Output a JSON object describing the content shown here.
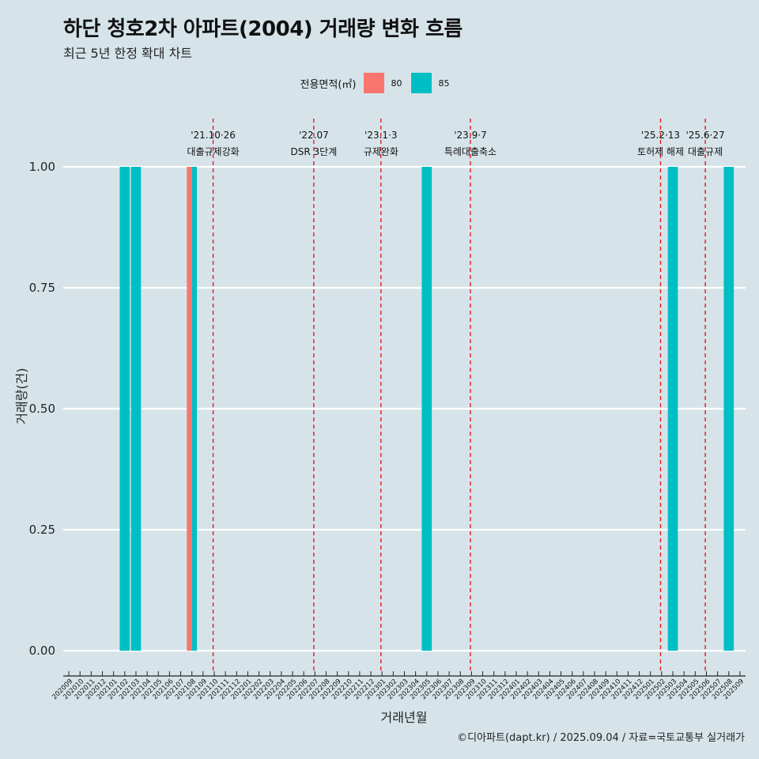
{
  "title": "하단 청호2차 아파트(2004) 거래량 변화 흐름",
  "subtitle": "최근 5년 한정 확대 차트",
  "caption": "©디아파트(dapt.kr) / 2025.09.04 / 자료=국토교통부 실거래가",
  "legend": {
    "title": "전용면적(㎡)",
    "items": [
      {
        "label": "80",
        "color": "#f8766d"
      },
      {
        "label": "85",
        "color": "#00bfc4"
      }
    ]
  },
  "chart_data": {
    "type": "bar",
    "xlabel": "거래년월",
    "ylabel": "거래량(건)",
    "ylim": [
      0,
      1
    ],
    "yticks": [
      "0.00",
      "0.25",
      "0.50",
      "0.75",
      "1.00"
    ],
    "categories": [
      "202009",
      "202010",
      "202011",
      "202012",
      "202101",
      "202102",
      "202103",
      "202104",
      "202105",
      "202106",
      "202107",
      "202108",
      "202109",
      "202110",
      "202111",
      "202112",
      "202201",
      "202202",
      "202203",
      "202204",
      "202205",
      "202206",
      "202207",
      "202208",
      "202209",
      "202210",
      "202211",
      "202212",
      "202301",
      "202302",
      "202303",
      "202304",
      "202305",
      "202306",
      "202307",
      "202308",
      "202309",
      "202310",
      "202311",
      "202312",
      "202401",
      "202402",
      "202403",
      "202404",
      "202405",
      "202406",
      "202407",
      "202408",
      "202409",
      "202410",
      "202411",
      "202412",
      "202501",
      "202502",
      "202503",
      "202504",
      "202505",
      "202506",
      "202507",
      "202508",
      "202509"
    ],
    "bars": [
      {
        "month": "202102",
        "series": "85",
        "value": 1
      },
      {
        "month": "202103",
        "series": "85",
        "value": 1
      },
      {
        "month": "202108",
        "series": "80",
        "value": 1
      },
      {
        "month": "202108",
        "series": "85",
        "value": 1
      },
      {
        "month": "202305",
        "series": "85",
        "value": 1
      },
      {
        "month": "202503",
        "series": "85",
        "value": 1
      },
      {
        "month": "202508",
        "series": "85",
        "value": 1
      }
    ],
    "events": [
      {
        "pos": 13.4,
        "date": "'21.10·26",
        "label": "대출규제강화"
      },
      {
        "pos": 22.4,
        "date": "'22.07",
        "label": "DSR 3단계"
      },
      {
        "pos": 28.4,
        "date": "'23.1·3",
        "label": "규제완화"
      },
      {
        "pos": 36.4,
        "date": "'23.9·7",
        "label": "특례대출축소"
      },
      {
        "pos": 53.4,
        "date": "'25.2·13",
        "label": "토허제 해제"
      },
      {
        "pos": 57.4,
        "date": "'25.6·27",
        "label": "대출규제"
      }
    ]
  }
}
